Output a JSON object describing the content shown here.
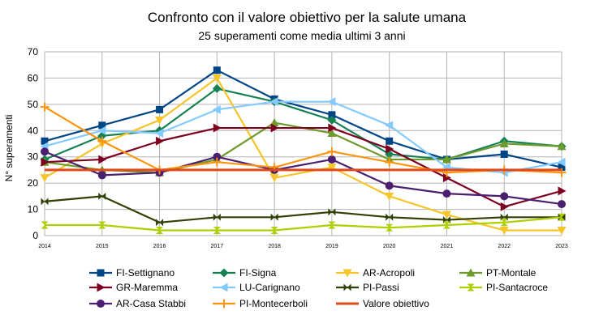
{
  "chart_data": {
    "type": "line",
    "title": "Confronto con il valore obiettivo per la salute umana",
    "subtitle": "25 superamenti come media ultimi 3 anni",
    "xlabel": "",
    "ylabel": "N° superamenti",
    "x": [
      "2014",
      "2015",
      "2016",
      "2017",
      "2018",
      "2019",
      "2020",
      "2021",
      "2022",
      "2023"
    ],
    "yticks": [
      "0",
      "10",
      "20",
      "30",
      "40",
      "50",
      "60",
      "70"
    ],
    "ylim": [
      0,
      70
    ],
    "grid": true,
    "legend": "bottom",
    "series": [
      {
        "name": "FI-Settignano",
        "color": "#004586",
        "marker": "square",
        "values": [
          36,
          42,
          48,
          63,
          52,
          46,
          36,
          29,
          31,
          26
        ]
      },
      {
        "name": "FI-Signa",
        "color": "#168253",
        "marker": "diamond",
        "values": [
          29,
          38,
          40,
          56,
          51,
          44,
          31,
          29,
          36,
          34
        ]
      },
      {
        "name": "AR-Acropoli",
        "color": "#f5c52a",
        "marker": "triangle-down",
        "values": [
          22,
          35,
          44,
          60,
          22,
          26,
          15,
          8,
          2,
          2
        ]
      },
      {
        "name": "PT-Montale",
        "color": "#6e9b2b",
        "marker": "triangle-up",
        "values": [
          28,
          25,
          24,
          29,
          43,
          39,
          29,
          29,
          35,
          34
        ]
      },
      {
        "name": "GR-Maremma",
        "color": "#7e0021",
        "marker": "triangle-right",
        "values": [
          28,
          29,
          36,
          41,
          41,
          41,
          33,
          22,
          11,
          17
        ]
      },
      {
        "name": "LU-Carignano",
        "color": "#83caff",
        "marker": "triangle-left",
        "values": [
          34,
          40,
          39,
          48,
          51,
          51,
          42,
          26,
          24,
          28
        ]
      },
      {
        "name": "PI-Passi",
        "color": "#314004",
        "marker": "bowtie",
        "values": [
          13,
          15,
          5,
          7,
          7,
          9,
          7,
          6,
          7,
          7
        ]
      },
      {
        "name": "PI-Santacroce",
        "color": "#aecf00",
        "marker": "hourglass",
        "values": [
          4,
          4,
          2,
          2,
          2,
          4,
          3,
          4,
          5,
          7
        ]
      },
      {
        "name": "AR-Casa Stabbi",
        "color": "#4b1f6f",
        "marker": "circle",
        "values": [
          32,
          23,
          24,
          30,
          25,
          29,
          19,
          16,
          15,
          12
        ]
      },
      {
        "name": "PI-Montecerboli",
        "color": "#ff950e",
        "marker": "plus",
        "values": [
          49,
          36,
          25,
          28,
          26,
          32,
          28,
          24,
          25,
          24
        ]
      },
      {
        "name": "Valore obiettivo",
        "color": "#e0491a",
        "marker": "none",
        "values": [
          25,
          25,
          25,
          25,
          25,
          25,
          25,
          25,
          25,
          25
        ]
      }
    ]
  }
}
